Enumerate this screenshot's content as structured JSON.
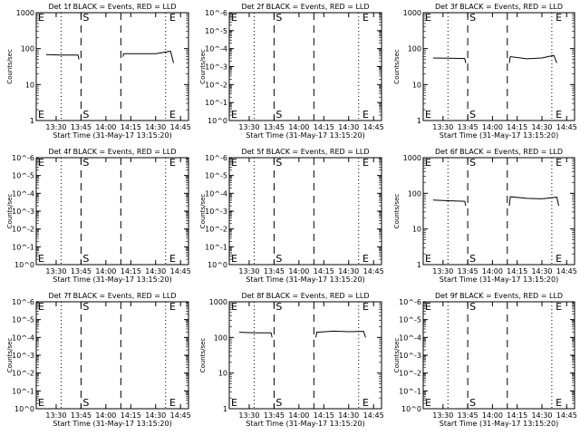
{
  "page": {
    "xlabel": "Start Time (31-May-17 13:15:20)"
  },
  "chart_data": [
    {
      "type": "line",
      "title": "Det 1f BLACK = Events, RED = LLD",
      "ylabel": "Counts/sec",
      "yscale": "log",
      "ylim": [
        1,
        1000
      ],
      "yticks": [
        "1",
        "10",
        "100",
        "1000"
      ],
      "xticks": [
        "13:30",
        "13:45",
        "14:00",
        "14:15",
        "14:30",
        "14:45"
      ],
      "xlim": [
        13.3,
        14.83
      ],
      "markers": [
        {
          "label": "E",
          "x": 13.3
        },
        {
          "label": "S",
          "x": 13.75
        },
        {
          "label": "E",
          "x": 14.62
        }
      ],
      "dotted_lines": [
        13.55,
        14.6
      ],
      "dashed_lines": [
        13.75,
        14.15
      ],
      "series": [
        {
          "segments": [
            [
              [
                13.4,
                68
              ],
              [
                13.55,
                66
              ],
              [
                13.72,
                66
              ],
              [
                13.73,
                50
              ]
            ],
            [
              [
                14.17,
                60
              ],
              [
                14.18,
                72
              ],
              [
                14.5,
                72
              ],
              [
                14.65,
                85
              ],
              [
                14.68,
                40
              ]
            ]
          ]
        }
      ]
    },
    {
      "type": "line",
      "title": "Det 2f BLACK = Events, RED = LLD",
      "ylabel": "Counts/sec",
      "yscale": "log",
      "ylim": [
        1,
        1000000
      ],
      "yticks": [
        "10^0",
        "10^-1",
        "10^-2",
        "10^-3",
        "10^-4",
        "10^-5",
        "10^-6"
      ],
      "xticks": [
        "13:30",
        "13:45",
        "14:00",
        "14:15",
        "14:30",
        "14:45"
      ],
      "xlim": [
        13.3,
        14.83
      ],
      "markers": [
        {
          "label": "E",
          "x": 13.3
        },
        {
          "label": "S",
          "x": 13.75
        },
        {
          "label": "E",
          "x": 14.62
        }
      ],
      "dotted_lines": [
        13.55,
        14.6
      ],
      "dashed_lines": [
        13.75,
        14.15
      ],
      "series": []
    },
    {
      "type": "line",
      "title": "Det 3f BLACK = Events, RED = LLD",
      "ylabel": "Counts/sec",
      "yscale": "log",
      "ylim": [
        1,
        1000
      ],
      "yticks": [
        "1",
        "10",
        "100",
        "1000"
      ],
      "xticks": [
        "13:30",
        "13:45",
        "14:00",
        "14:15",
        "14:30",
        "14:45"
      ],
      "xlim": [
        13.3,
        14.83
      ],
      "markers": [
        {
          "label": "E",
          "x": 13.3
        },
        {
          "label": "S",
          "x": 13.75
        },
        {
          "label": "E",
          "x": 14.62
        }
      ],
      "dotted_lines": [
        13.55,
        14.6
      ],
      "dashed_lines": [
        13.75,
        14.15
      ],
      "series": [
        {
          "segments": [
            [
              [
                13.4,
                55
              ],
              [
                13.55,
                54
              ],
              [
                13.72,
                53
              ],
              [
                13.73,
                40
              ]
            ],
            [
              [
                14.17,
                40
              ],
              [
                14.18,
                60
              ],
              [
                14.35,
                52
              ],
              [
                14.5,
                55
              ],
              [
                14.62,
                65
              ],
              [
                14.65,
                40
              ]
            ]
          ]
        }
      ]
    },
    {
      "type": "line",
      "title": "Det 4f BLACK = Events, RED = LLD",
      "ylabel": "Counts/sec",
      "yscale": "log",
      "ylim": [
        1,
        1000000
      ],
      "yticks": [
        "10^0",
        "10^-1",
        "10^-2",
        "10^-3",
        "10^-4",
        "10^-5",
        "10^-6"
      ],
      "xticks": [
        "13:30",
        "13:45",
        "14:00",
        "14:15",
        "14:30",
        "14:45"
      ],
      "xlim": [
        13.3,
        14.83
      ],
      "markers": [
        {
          "label": "E",
          "x": 13.3
        },
        {
          "label": "S",
          "x": 13.75
        },
        {
          "label": "E",
          "x": 14.62
        }
      ],
      "dotted_lines": [
        13.55,
        14.6
      ],
      "dashed_lines": [
        13.75,
        14.15
      ],
      "series": []
    },
    {
      "type": "line",
      "title": "Det 5f BLACK = Events, RED = LLD",
      "ylabel": "Counts/sec",
      "yscale": "log",
      "ylim": [
        1,
        1000000
      ],
      "yticks": [
        "10^0",
        "10^-1",
        "10^-2",
        "10^-3",
        "10^-4",
        "10^-5",
        "10^-6"
      ],
      "xticks": [
        "13:30",
        "13:45",
        "14:00",
        "14:15",
        "14:30",
        "14:45"
      ],
      "xlim": [
        13.3,
        14.83
      ],
      "markers": [
        {
          "label": "E",
          "x": 13.3
        },
        {
          "label": "S",
          "x": 13.75
        },
        {
          "label": "E",
          "x": 14.62
        }
      ],
      "dotted_lines": [
        13.55,
        14.6
      ],
      "dashed_lines": [
        13.75,
        14.15
      ],
      "series": []
    },
    {
      "type": "line",
      "title": "Det 6f BLACK = Events, RED = LLD",
      "ylabel": "Counts/sec",
      "yscale": "log",
      "ylim": [
        1,
        1000
      ],
      "yticks": [
        "1",
        "10",
        "100",
        "1000"
      ],
      "xticks": [
        "13:30",
        "13:45",
        "14:00",
        "14:15",
        "14:30",
        "14:45"
      ],
      "xlim": [
        13.3,
        14.83
      ],
      "markers": [
        {
          "label": "E",
          "x": 13.3
        },
        {
          "label": "S",
          "x": 13.75
        },
        {
          "label": "E",
          "x": 14.62
        }
      ],
      "dotted_lines": [
        13.55,
        14.6
      ],
      "dashed_lines": [
        13.75,
        14.15
      ],
      "series": [
        {
          "segments": [
            [
              [
                13.4,
                65
              ],
              [
                13.55,
                62
              ],
              [
                13.72,
                60
              ],
              [
                13.73,
                45
              ]
            ],
            [
              [
                14.17,
                45
              ],
              [
                14.18,
                80
              ],
              [
                14.35,
                72
              ],
              [
                14.5,
                70
              ],
              [
                14.65,
                78
              ],
              [
                14.67,
                45
              ]
            ]
          ]
        }
      ]
    },
    {
      "type": "line",
      "title": "Det 7f BLACK = Events, RED = LLD",
      "ylabel": "Counts/sec",
      "yscale": "log",
      "ylim": [
        1,
        1000000
      ],
      "yticks": [
        "10^0",
        "10^-1",
        "10^-2",
        "10^-3",
        "10^-4",
        "10^-5",
        "10^-6"
      ],
      "xticks": [
        "13:30",
        "13:45",
        "14:00",
        "14:15",
        "14:30",
        "14:45"
      ],
      "xlim": [
        13.3,
        14.83
      ],
      "markers": [
        {
          "label": "E",
          "x": 13.3
        },
        {
          "label": "S",
          "x": 13.75
        },
        {
          "label": "E",
          "x": 14.62
        }
      ],
      "dotted_lines": [
        13.55,
        14.6
      ],
      "dashed_lines": [
        13.75,
        14.15
      ],
      "series": []
    },
    {
      "type": "line",
      "title": "Det 8f BLACK = Events, RED = LLD",
      "ylabel": "Counts/sec",
      "yscale": "log",
      "ylim": [
        1,
        1000
      ],
      "yticks": [
        "1",
        "10",
        "100",
        "1000"
      ],
      "xticks": [
        "13:30",
        "13:45",
        "14:00",
        "14:15",
        "14:30",
        "14:45"
      ],
      "xlim": [
        13.3,
        14.83
      ],
      "markers": [
        {
          "label": "E",
          "x": 13.3
        },
        {
          "label": "S",
          "x": 13.75
        },
        {
          "label": "E",
          "x": 14.62
        }
      ],
      "dotted_lines": [
        13.55,
        14.6
      ],
      "dashed_lines": [
        13.75,
        14.15
      ],
      "series": [
        {
          "segments": [
            [
              [
                13.4,
                140
              ],
              [
                13.55,
                135
              ],
              [
                13.72,
                135
              ],
              [
                13.73,
                100
              ]
            ],
            [
              [
                14.17,
                100
              ],
              [
                14.18,
                140
              ],
              [
                14.35,
                150
              ],
              [
                14.5,
                145
              ],
              [
                14.65,
                148
              ],
              [
                14.67,
                100
              ]
            ]
          ]
        }
      ]
    },
    {
      "type": "line",
      "title": "Det 9f BLACK = Events, RED = LLD",
      "ylabel": "Counts/sec",
      "yscale": "log",
      "ylim": [
        1,
        1000000
      ],
      "yticks": [
        "10^0",
        "10^-1",
        "10^-2",
        "10^-3",
        "10^-4",
        "10^-5",
        "10^-6"
      ],
      "xticks": [
        "13:30",
        "13:45",
        "14:00",
        "14:15",
        "14:30",
        "14:45"
      ],
      "xlim": [
        13.3,
        14.83
      ],
      "markers": [
        {
          "label": "E",
          "x": 13.3
        },
        {
          "label": "S",
          "x": 13.75
        },
        {
          "label": "E",
          "x": 14.62
        }
      ],
      "dotted_lines": [
        13.55,
        14.6
      ],
      "dashed_lines": [
        13.75,
        14.15
      ],
      "series": []
    }
  ]
}
